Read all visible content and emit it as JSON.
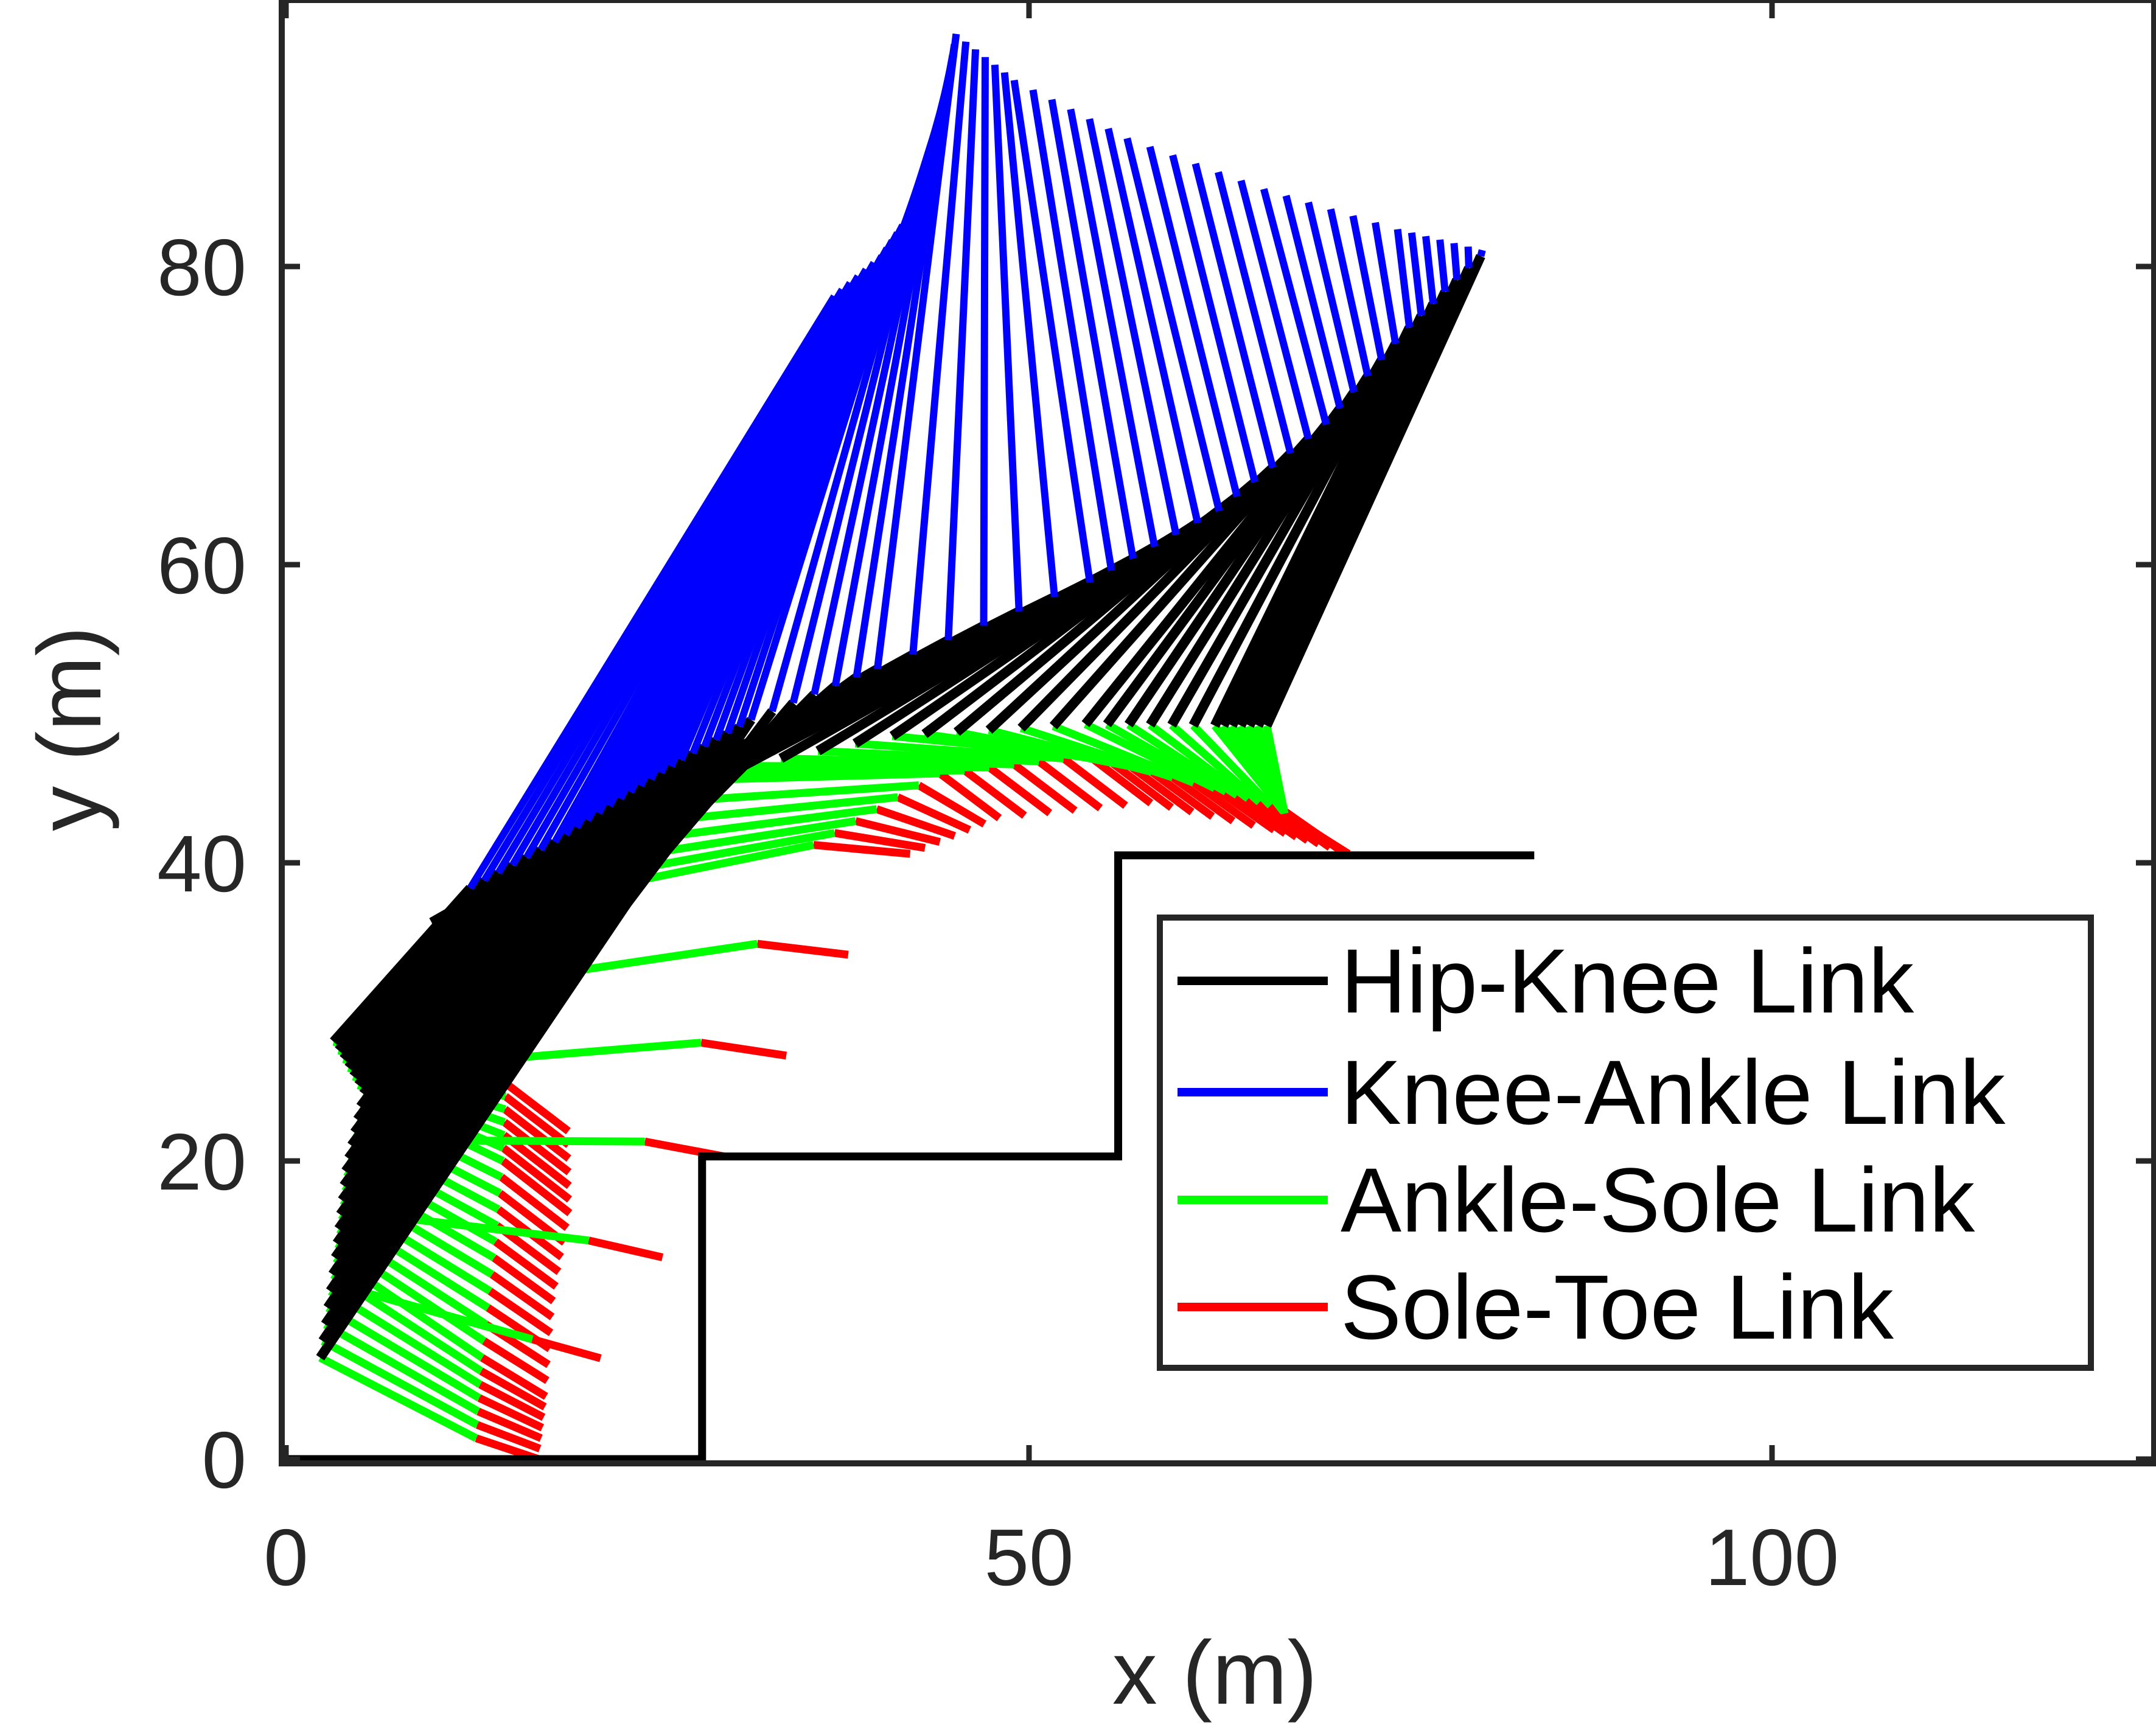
{
  "chart_data": {
    "type": "line",
    "title": "",
    "xlabel": "x (m)",
    "ylabel": "y (m)",
    "xlim": [
      0,
      125
    ],
    "ylim": [
      0,
      98
    ],
    "xticks": [
      0,
      50,
      100
    ],
    "yticks": [
      0,
      20,
      40,
      60,
      80
    ],
    "tick_labels_x": [
      "0",
      "50",
      "100"
    ],
    "tick_labels_y": [
      "0",
      "20",
      "40",
      "60",
      "80"
    ],
    "grid": false,
    "legend": {
      "placement": "lower-right",
      "entries": [
        "Hip-Knee Link",
        "Knee-Ankle Link",
        "Ankle-Sole Link",
        "Sole-Toe Link"
      ]
    },
    "colors": {
      "Hip-Knee Link": "#000000",
      "Knee-Ankle Link": "#0000ff",
      "Ankle-Sole Link": "#00ff00",
      "Sole-Toe Link": "#ff0000",
      "terrain": "#000000",
      "axes": "#262626"
    },
    "terrain": {
      "x": [
        0,
        28,
        28,
        56,
        56,
        84
      ],
      "y": [
        0,
        0,
        20.3,
        20.3,
        40.5,
        40.5
      ]
    },
    "frames": [
      {
        "hip": [
          36.9,
          78.0
        ],
        "knee": [
          12.4,
          38.3
        ],
        "ankle": [
          3.2,
          28.0
        ],
        "sole": [
          14.8,
          25.2
        ],
        "toe": [
          19.0,
          22.0
        ]
      },
      {
        "hip": [
          40.1,
          80.7
        ],
        "knee": [
          18.1,
          41.4
        ],
        "ankle": [
          5.2,
          24.5
        ],
        "sole": [
          14.6,
          20.0
        ],
        "toe": [
          19.1,
          16.5
        ]
      },
      {
        "hip": [
          42.2,
          83.8
        ],
        "knee": [
          22.5,
          44.3
        ],
        "ankle": [
          4.0,
          19.3
        ],
        "sole": [
          14.0,
          13.5
        ],
        "toe": [
          18.0,
          10.6
        ]
      },
      {
        "hip": [
          43.6,
          87.3
        ],
        "knee": [
          26.6,
          46.9
        ],
        "ankle": [
          3.3,
          13.5
        ],
        "sole": [
          13.2,
          6.8
        ],
        "toe": [
          17.5,
          4.2
        ]
      },
      {
        "hip": [
          44.4,
          91.4
        ],
        "knee": [
          31.3,
          49.6
        ],
        "ankle": [
          2.3,
          6.8
        ],
        "sole": [
          12.8,
          1.4
        ],
        "toe": [
          17.0,
          0.0
        ]
      },
      {
        "hip": [
          45.1,
          95.6
        ],
        "knee": [
          39.8,
          53.0
        ],
        "ankle": [
          9.8,
          36.0
        ],
        "sole": [
          35.5,
          41.2
        ],
        "toe": [
          42.0,
          40.6
        ]
      },
      {
        "hip": [
          49.0,
          92.5
        ],
        "knee": [
          54.1,
          58.8
        ],
        "ankle": [
          25.8,
          45.5
        ],
        "sole": [
          44.0,
          46.0
        ],
        "toe": [
          48.0,
          43.0
        ]
      },
      {
        "hip": [
          56.6,
          88.6
        ],
        "knee": [
          62.8,
          63.6
        ],
        "ankle": [
          40.8,
          48.5
        ],
        "sole": [
          54.0,
          47.2
        ],
        "toe": [
          58.2,
          44.0
        ]
      },
      {
        "hip": [
          65.8,
          85.2
        ],
        "knee": [
          70.0,
          69.4
        ],
        "ankle": [
          53.8,
          49.3
        ],
        "sole": [
          62.5,
          45.0
        ],
        "toe": [
          66.5,
          42.2
        ]
      },
      {
        "hip": [
          74.8,
          82.5
        ],
        "knee": [
          75.6,
          75.9
        ],
        "ankle": [
          62.5,
          49.2
        ],
        "sole": [
          67.0,
          43.6
        ],
        "toe": [
          71.0,
          40.8
        ]
      },
      {
        "hip": [
          80.5,
          81.1
        ],
        "knee": [
          80.4,
          80.7
        ],
        "ankle": [
          66.0,
          49.2
        ],
        "sole": [
          67.2,
          43.3
        ],
        "toe": [
          71.5,
          40.6
        ]
      }
    ]
  }
}
